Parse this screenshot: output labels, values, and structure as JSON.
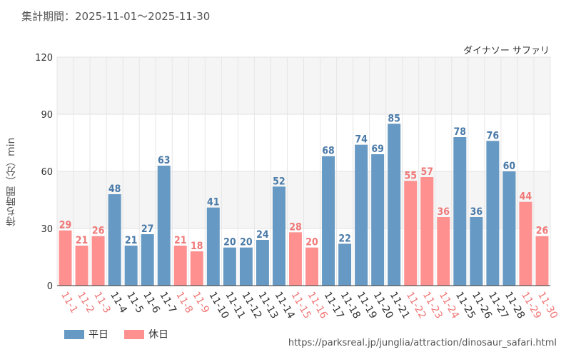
{
  "header": {
    "period": "集計期間：2025-11-01〜2025-11-30"
  },
  "chart_data": {
    "type": "bar",
    "title": "ダイナソー サファリ",
    "ylabel": "待ち時間（分）min",
    "ylim": [
      0,
      120
    ],
    "yticks": [
      "0",
      "30",
      "60",
      "90",
      "120"
    ],
    "ytick_values": [
      0,
      30,
      60,
      90,
      120
    ],
    "categories": [
      "11-1",
      "11-2",
      "11-3",
      "11-4",
      "11-5",
      "11-6",
      "11-7",
      "11-8",
      "11-9",
      "11-10",
      "11-11",
      "11-12",
      "11-13",
      "11-14",
      "11-15",
      "11-16",
      "11-17",
      "11-18",
      "11-19",
      "11-20",
      "11-21",
      "11-22",
      "11-23",
      "11-24",
      "11-25",
      "11-26",
      "11-27",
      "11-28",
      "11-29",
      "11-30"
    ],
    "values": [
      29,
      21,
      26,
      48,
      21,
      27,
      63,
      21,
      18,
      41,
      20,
      20,
      24,
      52,
      28,
      20,
      68,
      22,
      74,
      69,
      85,
      55,
      57,
      36,
      78,
      36,
      76,
      60,
      44,
      26
    ],
    "day_type": [
      "holiday",
      "holiday",
      "holiday",
      "weekday",
      "weekday",
      "weekday",
      "weekday",
      "holiday",
      "holiday",
      "weekday",
      "weekday",
      "weekday",
      "weekday",
      "weekday",
      "holiday",
      "holiday",
      "weekday",
      "weekday",
      "weekday",
      "weekday",
      "weekday",
      "holiday",
      "holiday",
      "holiday",
      "weekday",
      "weekday",
      "weekday",
      "weekday",
      "holiday",
      "holiday"
    ],
    "legend": [
      {
        "key": "weekday",
        "label": "平日",
        "color": "#6699c3"
      },
      {
        "key": "holiday",
        "label": "休日",
        "color": "#ff9090"
      }
    ],
    "label_colors": {
      "weekday": "#4a7aa8",
      "holiday": "#f07878"
    },
    "xlabel_colors": {
      "weekday": "#333333",
      "holiday": "#f07878"
    }
  },
  "footer": {
    "source": "https://parksreal.jp/junglia/attraction/dinosaur_safari.html"
  }
}
